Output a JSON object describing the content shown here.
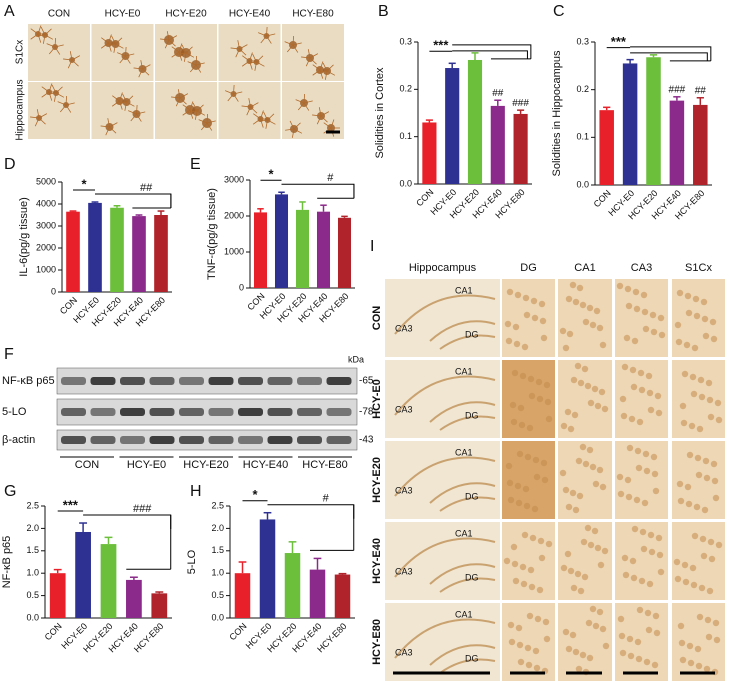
{
  "chart_data": [
    {
      "type": "bar",
      "panel": "B",
      "ylabel": "Solidities in Cortex",
      "categories": [
        "CON",
        "HCY-E0",
        "HCY-E20",
        "HCY-E40",
        "HCY-E80"
      ],
      "values": [
        0.13,
        0.245,
        0.262,
        0.165,
        0.148
      ],
      "errors": [
        0.005,
        0.01,
        0.015,
        0.012,
        0.008
      ],
      "colors": [
        "#e8202a",
        "#2e3192",
        "#6cbf3b",
        "#8b2a8a",
        "#b0232a"
      ],
      "ylim": [
        0,
        0.3
      ],
      "yticks": [
        {
          "value": 0,
          "label": "0.0"
        },
        0.1,
        0.2,
        0.3
      ],
      "annotations": [
        "***",
        "##",
        "###"
      ]
    },
    {
      "type": "bar",
      "panel": "C",
      "ylabel": "Solidities in Hippocampus",
      "categories": [
        "CON",
        "HCY-E0",
        "HCY-E20",
        "HCY-E40",
        "HCY-E80"
      ],
      "values": [
        0.157,
        0.255,
        0.268,
        0.177,
        0.168
      ],
      "errors": [
        0.006,
        0.008,
        0.005,
        0.008,
        0.015
      ],
      "colors": [
        "#e8202a",
        "#2e3192",
        "#6cbf3b",
        "#8b2a8a",
        "#b0232a"
      ],
      "ylim": [
        0,
        0.3
      ],
      "yticks": [
        {
          "value": 0,
          "label": "0.0"
        },
        0.1,
        0.2,
        0.3
      ],
      "annotations": [
        "***",
        "###",
        "##"
      ]
    },
    {
      "type": "bar",
      "panel": "D",
      "ylabel": "IL-6(pg/g tissue)",
      "categories": [
        "CON",
        "HCY-E0",
        "HCY-E20",
        "HCY-E40",
        "HCY-E80"
      ],
      "values": [
        3650,
        4050,
        3830,
        3450,
        3500
      ],
      "errors": [
        30,
        40,
        90,
        50,
        180
      ],
      "colors": [
        "#e8202a",
        "#2e3192",
        "#6cbf3b",
        "#8b2a8a",
        "#b0232a"
      ],
      "ylim": [
        0,
        5000
      ],
      "yticks": [
        0,
        1000,
        2000,
        3000,
        4000,
        5000
      ],
      "annotations": [
        "*",
        "##"
      ]
    },
    {
      "type": "bar",
      "panel": "E",
      "ylabel": "TNF-α(pg/g tissue)",
      "categories": [
        "CON",
        "HCY-E0",
        "HCY-E20",
        "HCY-E40",
        "HCY-E80"
      ],
      "values": [
        2100,
        2600,
        2170,
        2120,
        1950
      ],
      "errors": [
        100,
        60,
        220,
        180,
        40
      ],
      "colors": [
        "#e8202a",
        "#2e3192",
        "#6cbf3b",
        "#8b2a8a",
        "#b0232a"
      ],
      "ylim": [
        0,
        3000
      ],
      "yticks": [
        0,
        1000,
        2000,
        3000
      ],
      "annotations": [
        "*",
        "#"
      ]
    },
    {
      "type": "bar",
      "panel": "G",
      "ylabel": "NF-κB p65",
      "categories": [
        "CON",
        "HCY-E0",
        "HCY-E20",
        "HCY-E40",
        "HCY-E80"
      ],
      "values": [
        1.0,
        1.92,
        1.65,
        0.85,
        0.55
      ],
      "errors": [
        0.08,
        0.2,
        0.15,
        0.06,
        0.03
      ],
      "colors": [
        "#e8202a",
        "#2e3192",
        "#6cbf3b",
        "#8b2a8a",
        "#b0232a"
      ],
      "ylim": [
        0,
        2.5
      ],
      "yticks": [
        {
          "value": 0,
          "label": "0.0"
        },
        0.5,
        {
          "value": 1,
          "label": "1.0"
        },
        1.5,
        {
          "value": 2,
          "label": "2.0"
        },
        2.5
      ],
      "annotations": [
        "***",
        "###"
      ]
    },
    {
      "type": "bar",
      "panel": "H",
      "ylabel": "5-LO",
      "categories": [
        "CON",
        "HCY-E0",
        "HCY-E20",
        "HCY-E40",
        "HCY-E80"
      ],
      "values": [
        1.0,
        2.2,
        1.45,
        1.08,
        0.97
      ],
      "errors": [
        0.25,
        0.15,
        0.25,
        0.25,
        0.02
      ],
      "colors": [
        "#e8202a",
        "#2e3192",
        "#6cbf3b",
        "#8b2a8a",
        "#b0232a"
      ],
      "ylim": [
        0,
        2.5
      ],
      "yticks": [
        {
          "value": 0,
          "label": "0.0"
        },
        0.5,
        {
          "value": 1,
          "label": "1.0"
        },
        1.5,
        {
          "value": 2,
          "label": "2.0"
        },
        2.5
      ],
      "annotations": [
        "*",
        "#"
      ]
    }
  ],
  "panel_a": {
    "letter": "A",
    "columns": [
      "CON",
      "HCY-E0",
      "HCY-E20",
      "HCY-E40",
      "HCY-E80"
    ],
    "rows": [
      "S1Cx",
      "Hippocampus"
    ]
  },
  "panel_f": {
    "letter": "F",
    "unit": "kDa",
    "bands": [
      {
        "name": "NF-κB p65",
        "size": "-65"
      },
      {
        "name": "5-LO",
        "size": "-78"
      },
      {
        "name": "β-actin",
        "size": "-43"
      }
    ],
    "groups": [
      "CON",
      "HCY-E0",
      "HCY-E20",
      "HCY-E40",
      "HCY-E80"
    ]
  },
  "panel_i": {
    "letter": "I",
    "columns": [
      "Hippocampus",
      "DG",
      "CA1",
      "CA3",
      "S1Cx"
    ],
    "rows": [
      "CON",
      "HCY-E0",
      "HCY-E20",
      "HCY-E40",
      "HCY-E80"
    ],
    "regions": [
      "CA1",
      "CA3",
      "DG"
    ]
  }
}
